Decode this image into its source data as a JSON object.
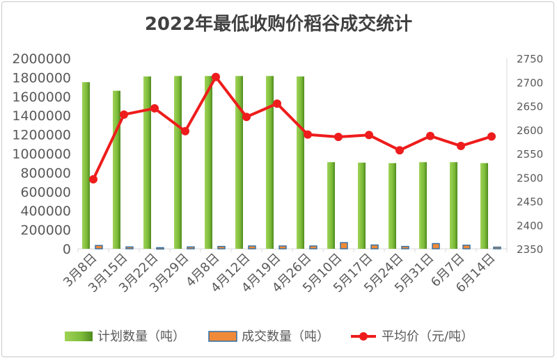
{
  "chart_data": {
    "type": "bar",
    "title": "2022年最低收购价稻谷成交统计",
    "categories": [
      "3月8日",
      "3月15日",
      "3月22日",
      "3月29日",
      "4月8日",
      "4月12日",
      "4月19日",
      "4月26日",
      "5月10日",
      "5月17日",
      "5月24日",
      "5月31日",
      "6月7日",
      "6月14日"
    ],
    "y_left": {
      "min": 0,
      "max": 2000000,
      "step": 200000,
      "ticks": [
        "0",
        "200000",
        "400000",
        "600000",
        "800000",
        "1000000",
        "1200000",
        "1400000",
        "1600000",
        "1800000",
        "2000000"
      ]
    },
    "y_right": {
      "min": 2350,
      "max": 2750,
      "step": 50,
      "ticks": [
        "2350",
        "2400",
        "2450",
        "2500",
        "2550",
        "2600",
        "2650",
        "2700",
        "2750"
      ]
    },
    "series": [
      {
        "name": "计划数量（吨）",
        "type": "bar",
        "axis": "left",
        "color": "#8cc63f",
        "values": [
          1750000,
          1660000,
          1810000,
          1815000,
          1815000,
          1815000,
          1815000,
          1810000,
          910000,
          905000,
          900000,
          910000,
          910000,
          900000
        ]
      },
      {
        "name": "成交数量（吨）",
        "type": "bar",
        "axis": "left",
        "color": "#f08a38",
        "edge": "#2e6ea6",
        "values": [
          35000,
          20000,
          12000,
          20000,
          25000,
          30000,
          30000,
          30000,
          65000,
          40000,
          25000,
          55000,
          38000,
          18000
        ]
      },
      {
        "name": "平均价（元/吨）",
        "type": "line",
        "axis": "right",
        "color": "#ee1c1c",
        "values": [
          2496,
          2632,
          2645,
          2597,
          2711,
          2627,
          2655,
          2590,
          2585,
          2589,
          2557,
          2587,
          2566,
          2586
        ]
      }
    ],
    "grid": false,
    "legend_position": "bottom"
  }
}
